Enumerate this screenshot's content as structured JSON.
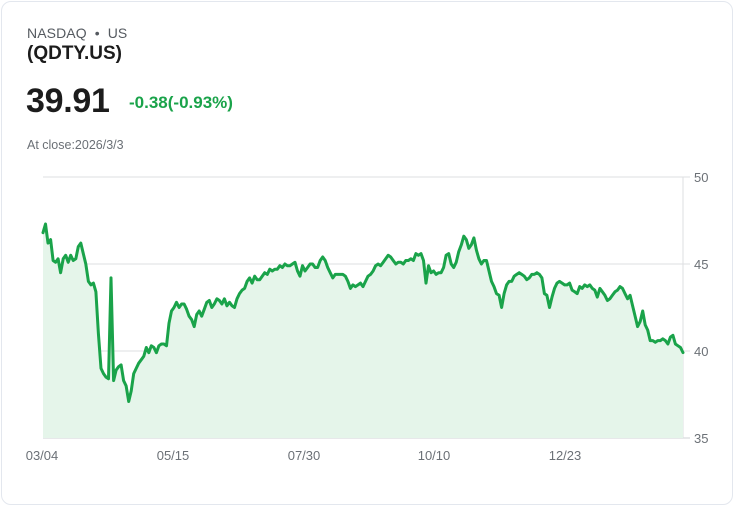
{
  "header": {
    "exchange": "NASDAQ",
    "separator": "•",
    "region": "US",
    "symbol": "(QDTY.US)",
    "price": "39.91",
    "change": "-0.38(-0.93%)",
    "close_label": "At close:2026/3/3"
  },
  "colors": {
    "line": "#1aa34a",
    "fill": "#e5f5ea",
    "grid": "#dedfe2",
    "change_text": "#1aa34a"
  },
  "chart_data": {
    "type": "area",
    "title": "(QDTY.US)",
    "xlabel": "",
    "ylabel": "",
    "ylim": [
      35,
      50
    ],
    "y_ticks": [
      35,
      40,
      45,
      50
    ],
    "x_tick_labels": [
      "03/04",
      "05/15",
      "07/30",
      "10/10",
      "12/23"
    ],
    "grid": true,
    "legend": "none",
    "x_index_range": [
      0,
      250
    ],
    "series": [
      {
        "name": "QDTY.US",
        "values": [
          46.8,
          47.3,
          46.2,
          46.4,
          45.2,
          45.1,
          45.3,
          44.5,
          45.3,
          45.5,
          45.1,
          45.5,
          45.2,
          45.3,
          46.0,
          46.2,
          45.6,
          45.0,
          44.0,
          43.8,
          43.9,
          43.4,
          41.0,
          39.0,
          38.7,
          38.5,
          38.4,
          44.2,
          38.3,
          38.9,
          39.1,
          39.2,
          38.3,
          38.0,
          37.1,
          37.7,
          38.7,
          39.0,
          39.3,
          39.5,
          39.7,
          40.2,
          39.9,
          40.3,
          40.2,
          39.9,
          40.3,
          40.4,
          40.4,
          40.3,
          41.6,
          42.3,
          42.5,
          42.8,
          42.5,
          42.7,
          42.7,
          42.4,
          42.0,
          41.8,
          41.4,
          42.1,
          42.3,
          42.0,
          42.4,
          42.8,
          42.9,
          42.5,
          42.7,
          43.0,
          42.9,
          42.7,
          43.0,
          42.6,
          42.8,
          42.6,
          42.5,
          43.0,
          43.3,
          43.5,
          43.6,
          44.0,
          44.2,
          43.9,
          44.3,
          44.1,
          44.1,
          44.3,
          44.5,
          44.4,
          44.7,
          44.6,
          44.7,
          44.7,
          44.9,
          44.8,
          45.0,
          44.9,
          44.9,
          45.0,
          45.1,
          44.6,
          44.3,
          44.9,
          44.6,
          44.8,
          45.0,
          45.0,
          44.8,
          44.8,
          45.2,
          45.4,
          45.2,
          44.8,
          44.5,
          44.2,
          44.4,
          44.4,
          44.4,
          44.4,
          44.3,
          44.0,
          43.6,
          43.8,
          43.7,
          43.8,
          43.9,
          43.7,
          44.0,
          44.3,
          44.4,
          44.6,
          44.9,
          45.0,
          44.9,
          45.1,
          45.3,
          45.5,
          45.4,
          45.2,
          45.0,
          45.1,
          45.1,
          45.0,
          45.2,
          45.2,
          45.3,
          45.2,
          45.6,
          45.5,
          45.6,
          45.2,
          43.9,
          44.9,
          44.5,
          44.6,
          44.4,
          44.5,
          44.5,
          44.8,
          45.5,
          45.6,
          45.0,
          44.8,
          45.1,
          45.7,
          46.1,
          46.6,
          46.4,
          45.9,
          46.1,
          46.5,
          45.8,
          45.3,
          45.0,
          45.2,
          45.2,
          44.6,
          44.0,
          43.7,
          43.3,
          43.2,
          42.5,
          43.3,
          43.8,
          44.0,
          44.0,
          44.3,
          44.4,
          44.5,
          44.4,
          44.3,
          44.1,
          44.2,
          44.4,
          44.4,
          44.5,
          44.4,
          44.2,
          43.3,
          43.2,
          42.5,
          43.1,
          43.6,
          43.9,
          44.0,
          43.9,
          43.8,
          43.8,
          43.9,
          43.5,
          43.4,
          43.3,
          43.7,
          43.6,
          43.8,
          43.7,
          43.8,
          43.6,
          43.5,
          43.1,
          43.6,
          43.4,
          43.2,
          42.9,
          43.0,
          43.2,
          43.4,
          43.5,
          43.7,
          43.6,
          43.3,
          43.0,
          43.2,
          42.6,
          42.0,
          41.4,
          41.7,
          42.3,
          41.5,
          41.2,
          40.6,
          40.6,
          40.5,
          40.6,
          40.6,
          40.7,
          40.6,
          40.4,
          40.8,
          40.9,
          40.4,
          40.3,
          40.2,
          39.91
        ]
      }
    ]
  }
}
